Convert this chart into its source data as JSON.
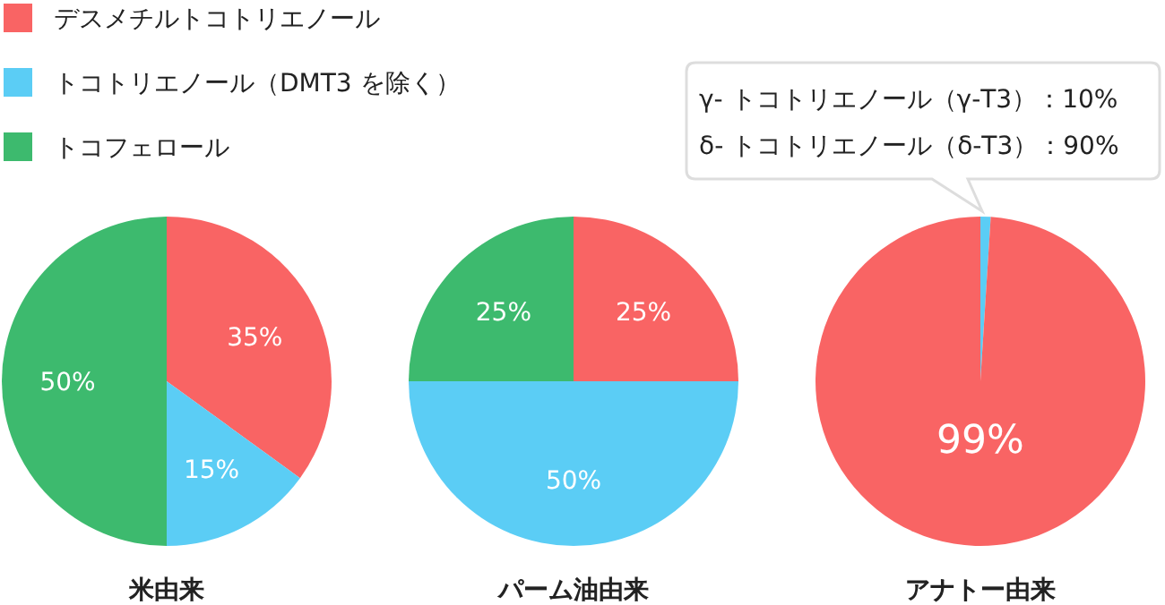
{
  "chart_data": [
    {
      "type": "pie",
      "title": "米由来",
      "categories": [
        "デスメチルトコトリエノール",
        "トコトリエノール（DMT3 を除く）",
        "トコフェロール"
      ],
      "values": [
        35,
        15,
        50
      ],
      "colors": [
        "#f96464",
        "#5bcdf5",
        "#3dba6e"
      ],
      "value_labels": [
        "35%",
        "15%",
        "50%"
      ],
      "legend": "top"
    },
    {
      "type": "pie",
      "title": "パーム油由来",
      "categories": [
        null,
        null,
        null
      ],
      "values": [
        25,
        50,
        25
      ],
      "colors": [
        "#f96464",
        "#5bcdf5",
        "#3dba6e"
      ],
      "value_labels": [
        "25%",
        "50%",
        "25%"
      ]
    },
    {
      "type": "pie",
      "title": "アナトー由来",
      "categories": [
        null,
        null
      ],
      "values": [
        1,
        99
      ],
      "colors": [
        "#5bcdf5",
        "#f96464"
      ],
      "value_labels": [
        null,
        "99%"
      ],
      "annotations": [
        "γ- トコトリエノール（γ-T3）：10%",
        "δ- トコトリエノール（δ-T3）：90%"
      ]
    }
  ]
}
